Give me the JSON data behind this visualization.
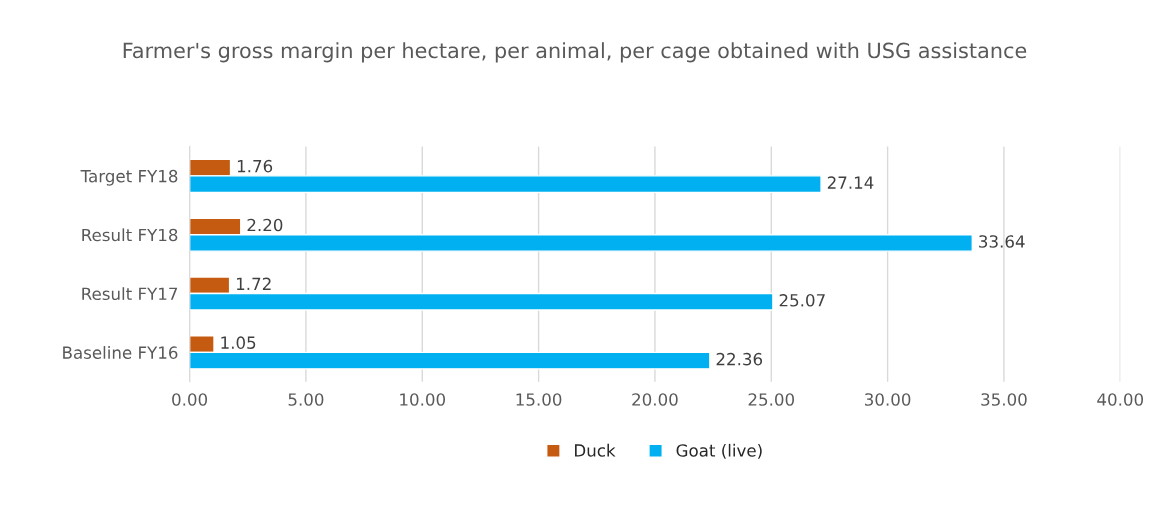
{
  "chart_data": {
    "type": "bar",
    "orientation": "horizontal",
    "title": "Farmer's gross margin per hectare, per animal, per cage obtained with USG assistance",
    "categories": [
      "Target FY18",
      "Result FY18",
      "Result FY17",
      "Baseline FY16"
    ],
    "series": [
      {
        "name": "Duck",
        "color": "#c55a11",
        "values": [
          1.76,
          2.2,
          1.72,
          1.05
        ],
        "value_labels": [
          "1.76",
          "2.20",
          "1.72",
          "1.05"
        ]
      },
      {
        "name": "Goat (live)",
        "color": "#00b0f0",
        "values": [
          27.14,
          33.64,
          25.07,
          22.36
        ],
        "value_labels": [
          "27.14",
          "33.64",
          "25.07",
          "22.36"
        ]
      }
    ],
    "xlim": [
      0,
      40
    ],
    "xticks": [
      {
        "value": 0,
        "label": "0.00"
      },
      {
        "value": 5,
        "label": "5.00"
      },
      {
        "value": 10,
        "label": "10.00"
      },
      {
        "value": 15,
        "label": "15.00"
      },
      {
        "value": 20,
        "label": "20.00"
      },
      {
        "value": 25,
        "label": "25.00"
      },
      {
        "value": 30,
        "label": "30.00"
      },
      {
        "value": 35,
        "label": "35.00"
      },
      {
        "value": 40,
        "label": "40.00"
      }
    ],
    "grid": "x",
    "legend": "bottom"
  }
}
